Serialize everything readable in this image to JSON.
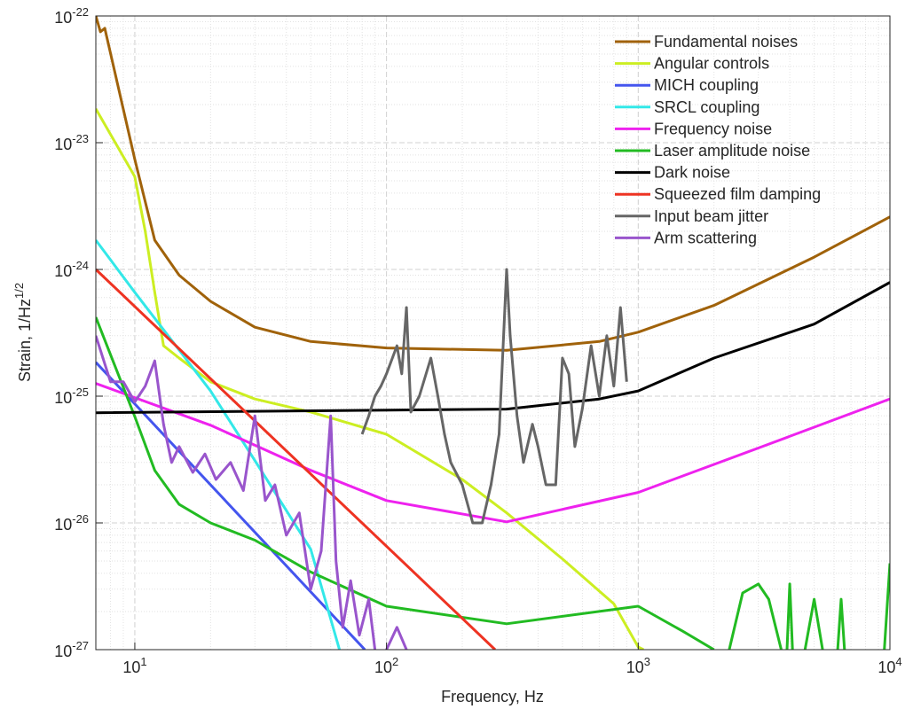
{
  "chart_data": {
    "type": "line",
    "x_label": "Frequency, Hz",
    "y_label": "Strain, 1/Hz^1/2",
    "xscale": "log",
    "yscale": "log",
    "grid": true,
    "legend": "upper right",
    "xlim": [
      7,
      10000
    ],
    "ylim": [
      1e-27,
      1e-22
    ],
    "xticks": [
      {
        "value": 10,
        "label": "10^1"
      },
      {
        "value": 100,
        "label": "10^2"
      },
      {
        "value": 1000,
        "label": "10^3"
      },
      {
        "value": 10000,
        "label": "10^4"
      }
    ],
    "yticks": [
      {
        "value": 1e-27,
        "label": "10^-27"
      },
      {
        "value": 1e-26,
        "label": "10^-26"
      },
      {
        "value": 1e-25,
        "label": "10^-25"
      },
      {
        "value": 1e-24,
        "label": "10^-24"
      },
      {
        "value": 1e-23,
        "label": "10^-23"
      },
      {
        "value": 1e-22,
        "label": "10^-22"
      }
    ],
    "series": [
      {
        "name": "Fundamental noises",
        "color": "#a0620a",
        "x": [
          7,
          7.3,
          7.6,
          10,
          12,
          15,
          20,
          30,
          50,
          100,
          300,
          700,
          1000,
          2000,
          5000,
          10000
        ],
        "values": [
          1e-22,
          7.5e-23,
          8e-23,
          7.4e-24,
          1.7e-24,
          9e-25,
          5.6e-25,
          3.5e-25,
          2.7e-25,
          2.4e-25,
          2.3e-25,
          2.7e-25,
          3.2e-25,
          5.2e-25,
          1.25e-24,
          2.6e-24
        ]
      },
      {
        "name": "Angular controls",
        "color": "#ccee22",
        "x": [
          7,
          10,
          11,
          12,
          13,
          15,
          20,
          30,
          50,
          100,
          200,
          300,
          500,
          800,
          1000,
          1050
        ],
        "values": [
          1.85e-23,
          5.4e-24,
          2e-24,
          6.6e-25,
          2.5e-25,
          2e-25,
          1.3e-25,
          9.5e-26,
          7.5e-26,
          5e-26,
          2.2e-26,
          1.2e-26,
          5.2e-27,
          2.3e-27,
          1.05e-27,
          1e-27
        ]
      },
      {
        "name": "MICH coupling",
        "color": "#4455ee",
        "x": [
          7,
          82
        ],
        "values": [
          1.85e-25,
          1e-27
        ]
      },
      {
        "name": "SRCL coupling",
        "color": "#33e8e8",
        "x": [
          7,
          10,
          20,
          30,
          50,
          65
        ],
        "values": [
          1.7e-24,
          6.6e-25,
          1.1e-25,
          3.1e-26,
          6.2e-27,
          1e-27
        ]
      },
      {
        "name": "Frequency noise",
        "color": "#ee22ee",
        "x": [
          7,
          20,
          50,
          100,
          300,
          1000,
          3000,
          10000
        ],
        "values": [
          1.26e-25,
          5.9e-26,
          2.6e-26,
          1.5e-26,
          1.02e-26,
          1.74e-26,
          3.9e-26,
          9.5e-26
        ]
      },
      {
        "name": "Laser amplitude noise",
        "color": "#22bb22",
        "x": [
          7,
          10,
          12,
          15,
          20,
          30,
          50,
          100,
          300,
          1000,
          1500,
          2000,
          null,
          2300,
          2600,
          3000,
          3300,
          3700,
          null,
          3900,
          4000,
          4100,
          null,
          4600,
          5000,
          5400,
          null,
          6200,
          6400,
          6600,
          null,
          9500,
          10000
        ],
        "values": [
          4.2e-25,
          6.9e-26,
          2.6e-26,
          1.4e-26,
          1e-26,
          7.3e-27,
          4.1e-27,
          2.2e-27,
          1.6e-27,
          2.2e-27,
          1.4e-27,
          1e-27,
          null,
          1e-27,
          2.8e-27,
          3.3e-27,
          2.5e-27,
          1e-27,
          null,
          1e-27,
          3.3e-27,
          1e-27,
          null,
          1e-27,
          2.5e-27,
          1e-27,
          null,
          1e-27,
          2.5e-27,
          1e-27,
          null,
          1e-27,
          4.8e-27
        ]
      },
      {
        "name": "Dark noise",
        "color": "#000000",
        "x": [
          7,
          300,
          700,
          1000,
          2000,
          5000,
          10000
        ],
        "values": [
          7.4e-26,
          7.9e-26,
          9.5e-26,
          1.1e-25,
          2e-25,
          3.7e-25,
          7.9e-25
        ]
      },
      {
        "name": "Squeezed film damping",
        "color": "#ee3322",
        "x": [
          7,
          270
        ],
        "values": [
          1e-24,
          1e-27
        ]
      },
      {
        "name": "Input beam jitter",
        "color": "#666666",
        "x": [
          80,
          85,
          90,
          95,
          100,
          110,
          115,
          120,
          125,
          135,
          150,
          160,
          170,
          180,
          200,
          220,
          240,
          260,
          280,
          300,
          310,
          330,
          350,
          380,
          400,
          430,
          470,
          500,
          530,
          560,
          600,
          650,
          700,
          750,
          800,
          850,
          900
        ],
        "values": [
          5e-26,
          7e-26,
          1e-25,
          1.2e-25,
          1.5e-25,
          2.5e-25,
          1.5e-25,
          5e-25,
          7.5e-26,
          1e-25,
          2e-25,
          1e-25,
          5e-26,
          3e-26,
          2e-26,
          1e-26,
          1e-26,
          2e-26,
          5e-26,
          1e-24,
          3e-25,
          7e-26,
          3e-26,
          6e-26,
          4e-26,
          2e-26,
          2e-26,
          2e-25,
          1.5e-25,
          4e-26,
          8e-26,
          2.5e-25,
          1e-25,
          3e-25,
          1.2e-25,
          5e-25,
          1.3e-25
        ]
      },
      {
        "name": "Arm scattering",
        "color": "#9955cc",
        "x": [
          7,
          8,
          9,
          10,
          11,
          12,
          13,
          14,
          15,
          17,
          19,
          21,
          24,
          27,
          30,
          33,
          36,
          40,
          45,
          50,
          55,
          60,
          63,
          67,
          72,
          78,
          85,
          90,
          null,
          100,
          110,
          120
        ],
        "values": [
          3e-25,
          1.3e-25,
          1.3e-25,
          9e-26,
          1.2e-25,
          1.9e-25,
          6e-26,
          3e-26,
          4e-26,
          2.5e-26,
          3.5e-26,
          2.2e-26,
          3e-26,
          1.8e-26,
          7e-26,
          1.5e-26,
          2e-26,
          8e-27,
          1.2e-26,
          3e-27,
          6e-27,
          7e-26,
          5e-27,
          1.5e-27,
          3.5e-27,
          1.3e-27,
          2.5e-27,
          1e-27,
          null,
          1e-27,
          1.5e-27,
          1e-27
        ]
      }
    ]
  }
}
